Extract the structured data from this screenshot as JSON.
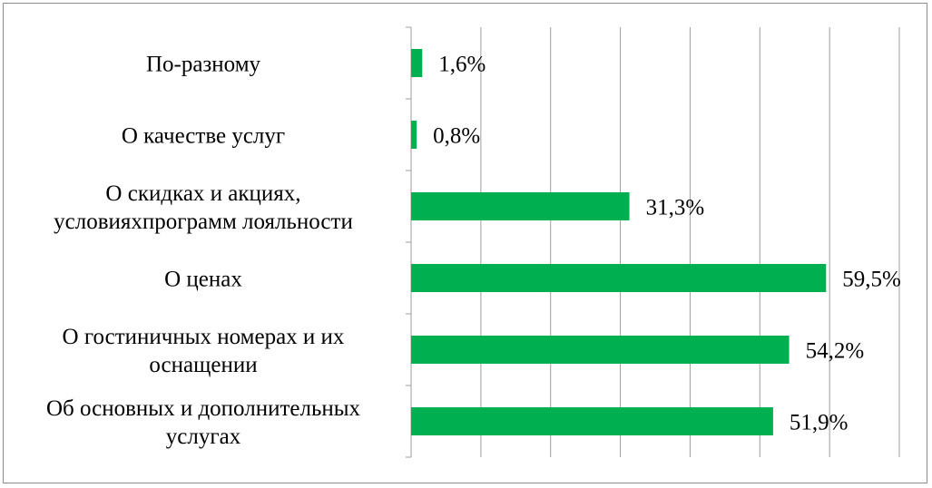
{
  "chart_data": {
    "type": "bar",
    "orientation": "horizontal",
    "title": "",
    "xlabel": "",
    "ylabel": "",
    "xlim": [
      0,
      70
    ],
    "grid": true,
    "legend": "none",
    "bar_color": "#00b050",
    "categories": [
      "По-разному",
      "О качестве услуг",
      "О скидках и акциях, условияхпрограмм лояльности",
      "О ценах",
      "О гостиничных номерах и их оснащении",
      "Об основных и дополнительных услугах"
    ],
    "category_lines": [
      [
        "По-разному"
      ],
      [
        "О качестве услуг"
      ],
      [
        "О скидках и акциях,",
        "условияхпрограмм лояльности"
      ],
      [
        "О ценах"
      ],
      [
        "О гостиничных номерах и их",
        "оснащении"
      ],
      [
        "Об основных и дополнительных",
        "услугах"
      ]
    ],
    "values": [
      1.6,
      0.8,
      31.3,
      59.5,
      54.2,
      51.9
    ],
    "value_labels": [
      "1,6%",
      "0,8%",
      "31,3%",
      "59,5%",
      "54,2%",
      "51,9%"
    ]
  }
}
